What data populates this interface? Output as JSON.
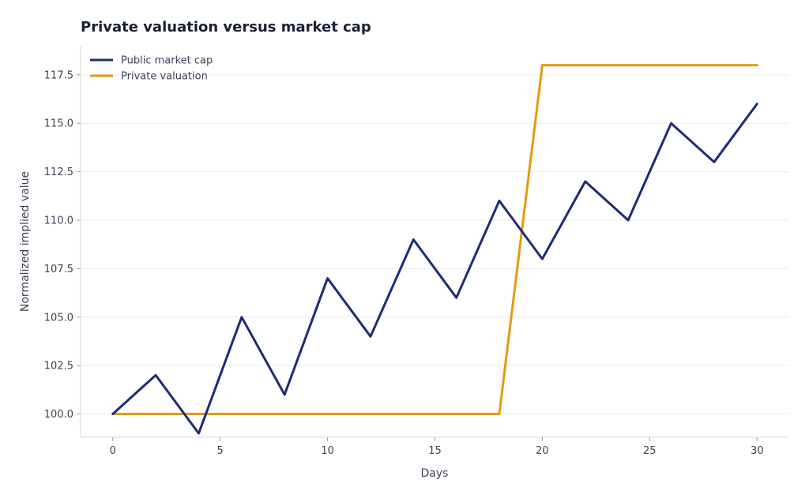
{
  "chart_data": {
    "type": "line",
    "title": "Private valuation versus market cap",
    "xlabel": "Days",
    "ylabel": "Normalized implied value",
    "xlim": [
      -1.5,
      31.5
    ],
    "ylim": [
      98.8,
      119
    ],
    "xticks": [
      0,
      5,
      10,
      15,
      20,
      25,
      30
    ],
    "yticks": [
      100.0,
      102.5,
      105.0,
      107.5,
      110.0,
      112.5,
      115.0,
      117.5
    ],
    "xtick_labels": [
      "0",
      "5",
      "10",
      "15",
      "20",
      "25",
      "30"
    ],
    "ytick_labels": [
      "100.0",
      "102.5",
      "105.0",
      "107.5",
      "110.0",
      "112.5",
      "115.0",
      "117.5"
    ],
    "grid": "horizontal",
    "legend_position": "top-left",
    "series": [
      {
        "name": "Public market cap",
        "color": "#1c2b7a",
        "x": [
          0,
          2,
          4,
          6,
          8,
          10,
          12,
          14,
          16,
          18,
          20,
          22,
          24,
          26,
          28,
          30
        ],
        "y": [
          100,
          102,
          99,
          105,
          101,
          107,
          104,
          109,
          106,
          111,
          108,
          112,
          110,
          115,
          113,
          116
        ]
      },
      {
        "name": "Private valuation",
        "color": "#e39a12",
        "x": [
          0,
          18,
          20,
          30
        ],
        "y": [
          100,
          100,
          118,
          118
        ]
      }
    ]
  }
}
